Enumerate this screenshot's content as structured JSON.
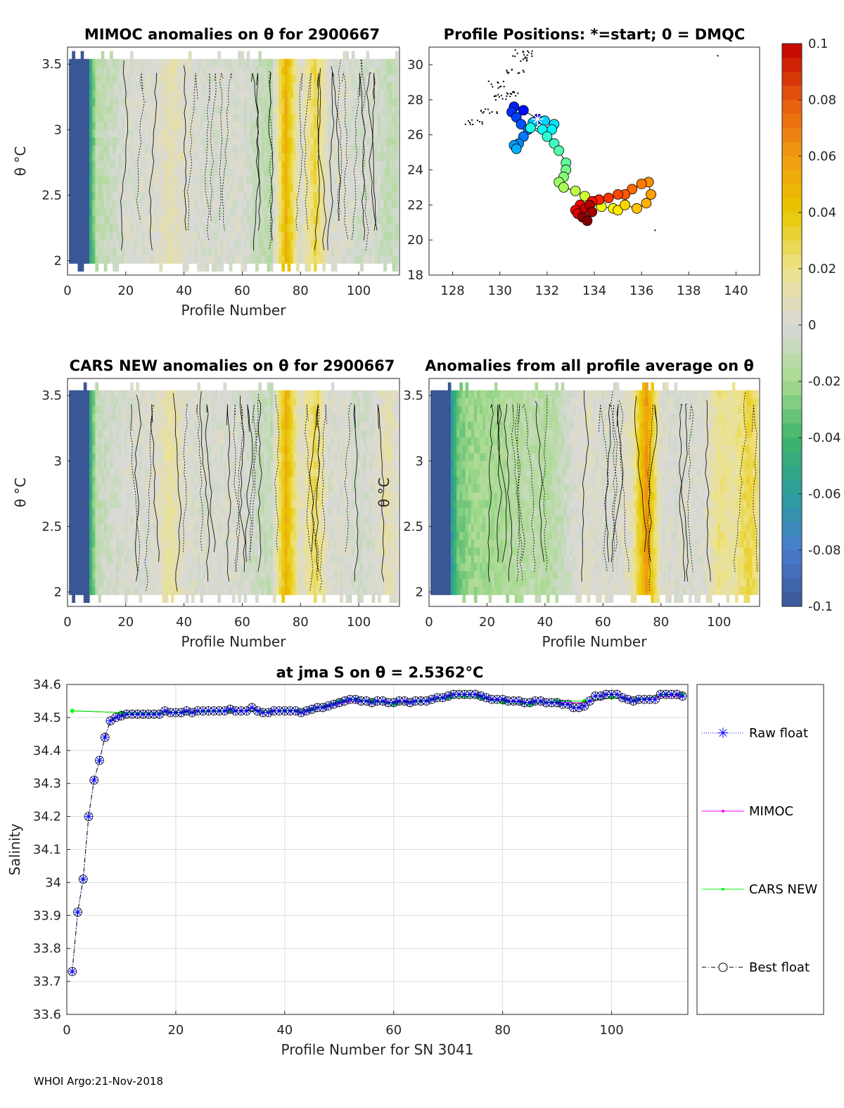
{
  "footer": "WHOI Argo:21-Nov-2018",
  "colors": {
    "raw": "#0000ff",
    "mimoc": "#ff00ff",
    "cars": "#00ff00",
    "best": "#000000"
  },
  "chart_data": [
    {
      "id": "mimoc",
      "type": "heatmap",
      "title": "MIMOC anomalies on θ  for 2900667",
      "xlabel": "Profile Number",
      "ylabel": "θ °C",
      "xlim": [
        0,
        114
      ],
      "ylim": [
        1.89,
        3.63
      ],
      "xticks": [
        0,
        20,
        40,
        60,
        80,
        100
      ],
      "yticks": [
        2,
        2.5,
        3,
        3.5
      ],
      "column_profiles": [
        0,
        5,
        10,
        15,
        20,
        25,
        30,
        35,
        40,
        45,
        50,
        55,
        60,
        65,
        70,
        75,
        80,
        85,
        90,
        95,
        100,
        105,
        110,
        115
      ],
      "column_anomaly": [
        -0.1,
        -0.1,
        -0.012,
        -0.008,
        0,
        0,
        0.002,
        0.01,
        0.005,
        0,
        -0.002,
        0,
        0,
        -0.008,
        -0.012,
        0.05,
        0.002,
        0.03,
        0,
        0.002,
        -0.004,
        0,
        -0.01,
        -0.006
      ]
    },
    {
      "id": "map",
      "type": "scatter",
      "title": "Profile Positions: *=start; 0 = DMQC",
      "xlim": [
        127,
        141
      ],
      "ylim": [
        18,
        31
      ],
      "xticks": [
        128,
        130,
        132,
        134,
        136,
        138,
        140
      ],
      "yticks": [
        18,
        20,
        22,
        24,
        26,
        28,
        30
      ],
      "start": {
        "lon": 131.6,
        "lat": 26.9
      },
      "lon": [
        131.6,
        131.0,
        130.6,
        130.5,
        130.7,
        130.9,
        131.2,
        131.0,
        130.8,
        130.6,
        130.7,
        131.4,
        131.9,
        132.3,
        132.2,
        131.8,
        131.3,
        132.0,
        132.3,
        132.5,
        132.8,
        132.8,
        132.7,
        132.5,
        132.7,
        133.2,
        133.6,
        134.0,
        134.3,
        134.8,
        135.0,
        135.3,
        135.8,
        136.2,
        136.4,
        136.3,
        136.0,
        135.6,
        135.3,
        135.0,
        134.6,
        134.2,
        133.9,
        133.4,
        133.2,
        133.3,
        133.6,
        133.8,
        133.9,
        133.5,
        133.7
      ],
      "lat": [
        26.9,
        27.4,
        27.6,
        27.3,
        27.0,
        26.6,
        26.3,
        25.9,
        25.5,
        25.4,
        25.2,
        26.7,
        26.8,
        26.6,
        26.3,
        26.3,
        26.4,
        25.9,
        25.5,
        25.1,
        24.4,
        24.0,
        23.6,
        23.3,
        23.0,
        22.8,
        22.5,
        22.2,
        21.9,
        21.8,
        21.7,
        22.0,
        21.8,
        22.1,
        22.6,
        23.3,
        23.2,
        22.9,
        22.6,
        22.6,
        22.4,
        22.3,
        22.2,
        22.0,
        21.7,
        21.5,
        21.8,
        22.0,
        21.6,
        21.3,
        21.1
      ]
    },
    {
      "id": "colorbar",
      "type": "colorbar",
      "range": [
        -0.1,
        0.1
      ],
      "ticks": [
        "0.1",
        "0.08",
        "0.06",
        "0.04",
        "0.02",
        "0",
        "-0.02",
        "-0.04",
        "-0.06",
        "-0.08",
        "-0.1"
      ],
      "stops": [
        "#3a5795",
        "#4a7ccf",
        "#2a9e9a",
        "#3fb56b",
        "#a8db8e",
        "#d9d9d9",
        "#ede38c",
        "#e8c800",
        "#f29b12",
        "#e85a0f",
        "#c00000"
      ]
    },
    {
      "id": "cars",
      "type": "heatmap",
      "title": "CARS NEW anomalies on θ for 2900667",
      "xlabel": "Profile Number",
      "ylabel": "θ °C",
      "xlim": [
        0,
        114
      ],
      "ylim": [
        1.89,
        3.63
      ],
      "xticks": [
        0,
        20,
        40,
        60,
        80,
        100
      ],
      "yticks": [
        2,
        2.5,
        3,
        3.5
      ],
      "column_profiles": [
        0,
        5,
        10,
        15,
        20,
        25,
        30,
        35,
        40,
        45,
        50,
        55,
        60,
        65,
        70,
        75,
        80,
        85,
        90,
        95,
        100,
        105,
        110,
        115
      ],
      "column_anomaly": [
        -0.1,
        -0.1,
        -0.01,
        -0.004,
        0,
        0,
        0.002,
        0.015,
        0.004,
        0,
        0,
        0,
        0,
        -0.006,
        -0.01,
        0.05,
        0.004,
        0.028,
        0,
        0.002,
        -0.004,
        0,
        0.01,
        0
      ]
    },
    {
      "id": "avg",
      "type": "heatmap",
      "title": "Anomalies from all profile average on θ",
      "xlabel": "Profile Number",
      "ylabel": "θ °C",
      "xlim": [
        0,
        114
      ],
      "ylim": [
        1.89,
        3.63
      ],
      "xticks": [
        0,
        20,
        40,
        60,
        80,
        100
      ],
      "yticks": [
        2,
        2.5,
        3,
        3.5
      ],
      "column_profiles": [
        0,
        5,
        10,
        15,
        20,
        25,
        30,
        35,
        40,
        45,
        50,
        55,
        60,
        65,
        70,
        75,
        80,
        85,
        90,
        95,
        100,
        105,
        110,
        115
      ],
      "column_anomaly": [
        -0.1,
        -0.1,
        -0.03,
        -0.022,
        -0.02,
        -0.018,
        -0.015,
        -0.012,
        -0.015,
        -0.01,
        0,
        0.004,
        0,
        0,
        0.01,
        0.06,
        0.002,
        0,
        0,
        0.002,
        0.02,
        0.015,
        0.03,
        0.02
      ]
    },
    {
      "id": "salinity",
      "type": "line",
      "title": "at jma S on θ = 2.5362",
      "title_unit": "°C",
      "xlabel": "Profile Number for SN 3041",
      "ylabel": "Salinity",
      "xlim": [
        0,
        114
      ],
      "ylim": [
        33.6,
        34.6
      ],
      "xticks": [
        0,
        20,
        40,
        60,
        80,
        100
      ],
      "yticks": [
        "33.6",
        "33.7",
        "33.8",
        "33.9",
        "34",
        "34.1",
        "34.2",
        "34.3",
        "34.4",
        "34.5",
        "34.6"
      ],
      "grid": true,
      "legend": [
        "Raw float",
        "MIMOC",
        "CARS NEW",
        "Best float"
      ],
      "legend_position": "outside-right",
      "best_float": [
        33.73,
        33.91,
        34.01,
        34.2,
        34.31,
        34.37,
        34.44,
        34.49,
        34.5,
        34.505,
        34.51,
        34.51,
        34.51,
        34.51,
        34.51,
        34.51,
        34.51,
        34.52,
        34.515,
        34.515,
        34.515,
        34.52,
        34.515,
        34.52,
        34.52,
        34.52,
        34.52,
        34.52,
        34.52,
        34.525,
        34.52,
        34.52,
        34.52,
        34.53,
        34.52,
        34.515,
        34.515,
        34.52,
        34.52,
        34.52,
        34.52,
        34.52,
        34.515,
        34.52,
        34.525,
        34.53,
        34.53,
        34.535,
        34.54,
        34.545,
        34.55,
        34.555,
        34.555,
        34.55,
        34.55,
        34.545,
        34.55,
        34.55,
        34.545,
        34.545,
        34.55,
        34.55,
        34.545,
        34.55,
        34.55,
        34.55,
        34.555,
        34.56,
        34.56,
        34.565,
        34.57,
        34.57,
        34.57,
        34.57,
        34.57,
        34.565,
        34.56,
        34.555,
        34.555,
        34.555,
        34.55,
        34.55,
        34.55,
        34.545,
        34.545,
        34.55,
        34.55,
        34.545,
        34.545,
        34.545,
        34.54,
        34.54,
        34.53,
        34.53,
        34.535,
        34.55,
        34.565,
        34.565,
        34.57,
        34.57,
        34.57,
        34.56,
        34.555,
        34.55,
        34.555,
        34.555,
        34.555,
        34.555,
        34.57,
        34.57,
        34.57,
        34.57,
        34.565
      ],
      "mimoc_x": [
        1,
        10,
        20,
        30,
        40,
        45,
        50,
        53,
        56,
        60,
        65,
        70,
        73,
        76,
        80,
        85,
        90,
        95,
        100,
        105,
        110,
        113
      ],
      "mimoc": [
        34.52,
        34.515,
        34.515,
        34.52,
        34.52,
        34.525,
        34.545,
        34.55,
        34.55,
        34.545,
        34.55,
        34.56,
        34.565,
        34.56,
        34.55,
        34.545,
        34.545,
        34.545,
        34.56,
        34.555,
        34.565,
        34.565
      ],
      "cars_x": [
        1,
        10,
        20,
        30,
        40,
        45,
        50,
        53,
        56,
        60,
        65,
        70,
        73,
        76,
        80,
        85,
        90,
        95,
        100,
        105,
        110,
        113
      ],
      "cars": [
        34.52,
        34.515,
        34.515,
        34.52,
        34.52,
        34.525,
        34.55,
        34.555,
        34.55,
        34.54,
        34.55,
        34.56,
        34.565,
        34.56,
        34.545,
        34.54,
        34.55,
        34.55,
        34.56,
        34.555,
        34.57,
        34.57
      ]
    }
  ]
}
